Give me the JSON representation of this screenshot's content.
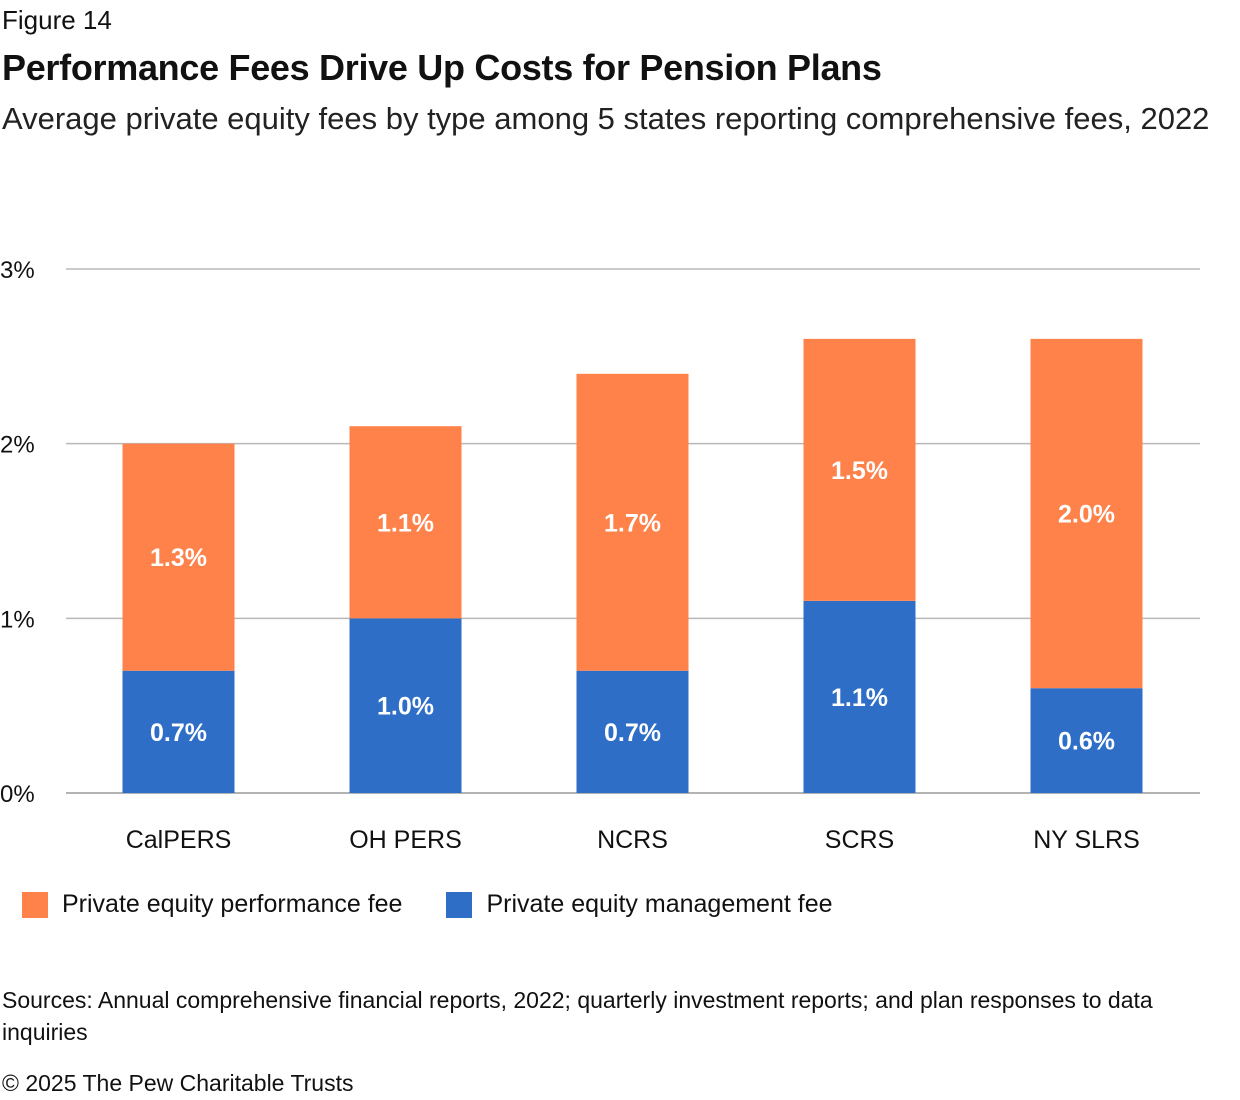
{
  "figure_label": "Figure 14",
  "title": "Performance Fees Drive Up Costs for Pension Plans",
  "subtitle": "Average private equity fees by type among 5 states reporting comprehensive fees, 2022",
  "sources": "Sources: Annual comprehensive financial reports, 2022; quarterly investment reports; and plan responses to data inquiries",
  "copyright": "© 2025 The Pew Charitable Trusts",
  "chart_data": {
    "type": "bar",
    "stacked": true,
    "categories": [
      "CalPERS",
      "OH PERS",
      "NCRS",
      "SCRS",
      "NY SLRS"
    ],
    "series": [
      {
        "name": "Private equity management fee",
        "color": "#2e6ec7",
        "values": [
          0.7,
          1.0,
          0.7,
          1.1,
          0.6
        ],
        "labels": [
          "0.7%",
          "1.0%",
          "0.7%",
          "1.1%",
          "0.6%"
        ]
      },
      {
        "name": "Private equity performance fee",
        "color": "#ff824a",
        "values": [
          1.3,
          1.1,
          1.7,
          1.5,
          2.0
        ],
        "labels": [
          "1.3%",
          "1.1%",
          "1.7%",
          "1.5%",
          "2.0%"
        ]
      }
    ],
    "ylim": [
      0,
      3
    ],
    "yticks": [
      0,
      1,
      2,
      3
    ],
    "ytick_labels": [
      "0%",
      "1%",
      "2%",
      "3%"
    ],
    "grid": true,
    "legend_position": "bottom-left",
    "legend_order": [
      "Private equity performance fee",
      "Private equity management fee"
    ],
    "xlabel": "",
    "ylabel": ""
  }
}
